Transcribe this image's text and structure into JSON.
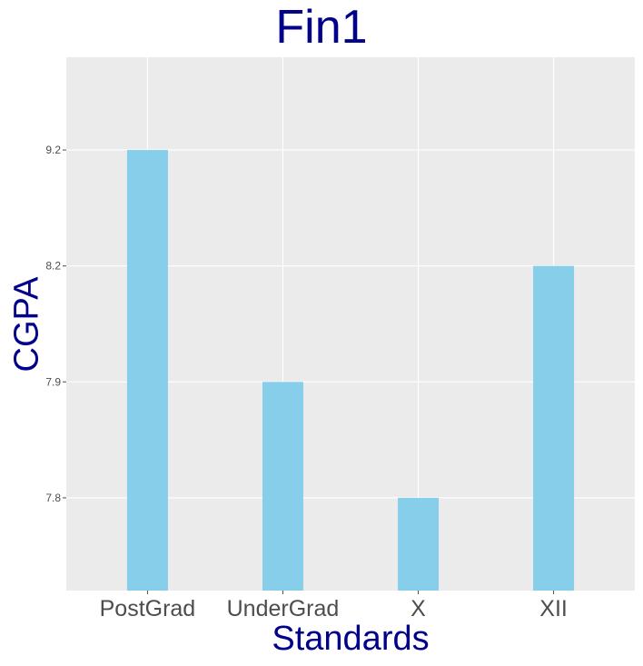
{
  "chart_data": {
    "type": "bar",
    "title": "Fin1",
    "xlabel": "Standards",
    "ylabel": "CGPA",
    "categories": [
      "PostGrad",
      "UnderGrad",
      "X",
      "XII"
    ],
    "values": [
      9.2,
      7.9,
      7.8,
      8.2
    ],
    "y_scale": "categorical",
    "y_ticks": [
      "7.8",
      "7.9",
      "8.2",
      "9.2"
    ],
    "bar_color": "#87ceeb",
    "panel_color": "#ebebeb",
    "grid_color": "#ffffff",
    "title_color": "#00008b",
    "grid": true,
    "legend": "none"
  }
}
